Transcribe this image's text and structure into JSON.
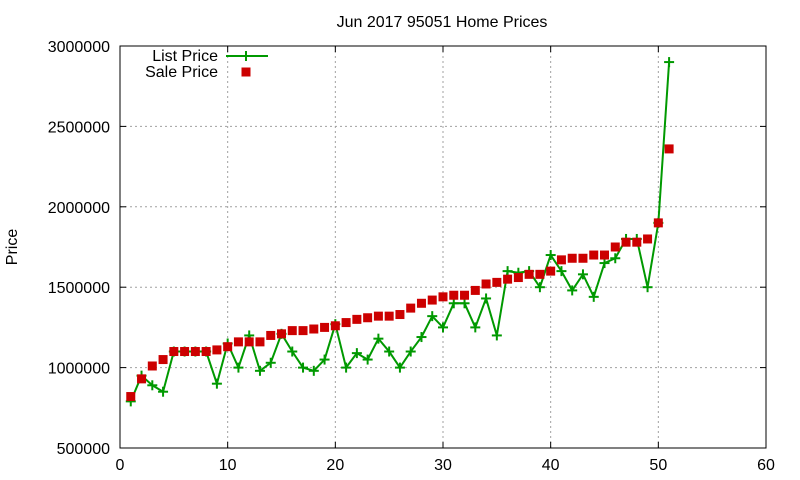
{
  "chart_data": {
    "type": "line",
    "title": "Jun 2017 95051 Home Prices",
    "xlabel": "",
    "ylabel": "Price",
    "xlim": [
      0,
      60
    ],
    "ylim": [
      500000,
      3000000
    ],
    "xticks": [
      0,
      10,
      20,
      30,
      40,
      50,
      60
    ],
    "yticks": [
      500000,
      1000000,
      1500000,
      2000000,
      2500000,
      3000000
    ],
    "grid": true,
    "legend_position": "top-left",
    "series": [
      {
        "name": "List Price",
        "style": "line-plus",
        "color": "#009900",
        "x": [
          1,
          2,
          3,
          4,
          5,
          6,
          7,
          8,
          9,
          10,
          11,
          12,
          13,
          14,
          15,
          16,
          17,
          18,
          19,
          20,
          21,
          22,
          23,
          24,
          25,
          26,
          27,
          28,
          29,
          30,
          31,
          32,
          33,
          34,
          35,
          36,
          37,
          38,
          39,
          40,
          41,
          42,
          43,
          44,
          45,
          46,
          47,
          48,
          49,
          50,
          51
        ],
        "y": [
          790000,
          950000,
          890000,
          850000,
          1100000,
          1100000,
          1100000,
          1100000,
          900000,
          1150000,
          1000000,
          1200000,
          980000,
          1030000,
          1210000,
          1100000,
          1000000,
          980000,
          1050000,
          1270000,
          1000000,
          1090000,
          1050000,
          1180000,
          1100000,
          1000000,
          1100000,
          1190000,
          1320000,
          1250000,
          1400000,
          1400000,
          1250000,
          1430000,
          1200000,
          1600000,
          1590000,
          1600000,
          1500000,
          1700000,
          1600000,
          1480000,
          1580000,
          1440000,
          1650000,
          1680000,
          1800000,
          1800000,
          1500000,
          1900000,
          2900000
        ]
      },
      {
        "name": "Sale Price",
        "style": "square-points",
        "color": "#cc0000",
        "x": [
          1,
          2,
          3,
          4,
          5,
          6,
          7,
          8,
          9,
          10,
          11,
          12,
          13,
          14,
          15,
          16,
          17,
          18,
          19,
          20,
          21,
          22,
          23,
          24,
          25,
          26,
          27,
          28,
          29,
          30,
          31,
          32,
          33,
          34,
          35,
          36,
          37,
          38,
          39,
          40,
          41,
          42,
          43,
          44,
          45,
          46,
          47,
          48,
          49,
          50,
          51
        ],
        "y": [
          820000,
          930000,
          1010000,
          1050000,
          1100000,
          1100000,
          1100000,
          1100000,
          1110000,
          1130000,
          1160000,
          1160000,
          1160000,
          1200000,
          1210000,
          1230000,
          1230000,
          1240000,
          1250000,
          1260000,
          1280000,
          1300000,
          1310000,
          1320000,
          1320000,
          1330000,
          1370000,
          1400000,
          1420000,
          1440000,
          1450000,
          1450000,
          1480000,
          1520000,
          1530000,
          1550000,
          1560000,
          1580000,
          1580000,
          1600000,
          1670000,
          1680000,
          1680000,
          1700000,
          1700000,
          1750000,
          1780000,
          1780000,
          1800000,
          1900000,
          2360000
        ]
      }
    ]
  }
}
